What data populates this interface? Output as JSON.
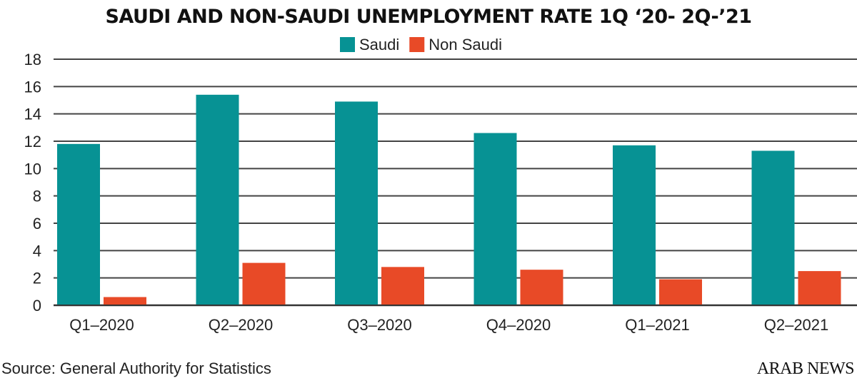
{
  "chart_data": {
    "type": "bar",
    "title": "SAUDI AND NON-SAUDI UNEMPLOYMENT RATE 1Q ‘20- 2Q-’21",
    "xlabel": "",
    "ylabel": "",
    "ylim": [
      0,
      18
    ],
    "yticks": [
      0,
      2,
      4,
      6,
      8,
      10,
      12,
      14,
      16,
      18
    ],
    "grid": true,
    "legend_position": "top-center",
    "categories": [
      "Q1-2020",
      "Q2-2020",
      "Q3-2020",
      "Q4-2020",
      "Q1-2021",
      "Q2-2021"
    ],
    "series": [
      {
        "name": "Saudi",
        "color": "#079294",
        "values": [
          11.8,
          15.4,
          14.9,
          12.6,
          11.7,
          11.3
        ]
      },
      {
        "name": "Non Saudi",
        "color": "#E84A27",
        "values": [
          0.6,
          3.1,
          2.8,
          2.6,
          1.9,
          2.5
        ]
      }
    ]
  },
  "source": "Source: General Authority for Statistics",
  "logo": "ARAB NEWS"
}
